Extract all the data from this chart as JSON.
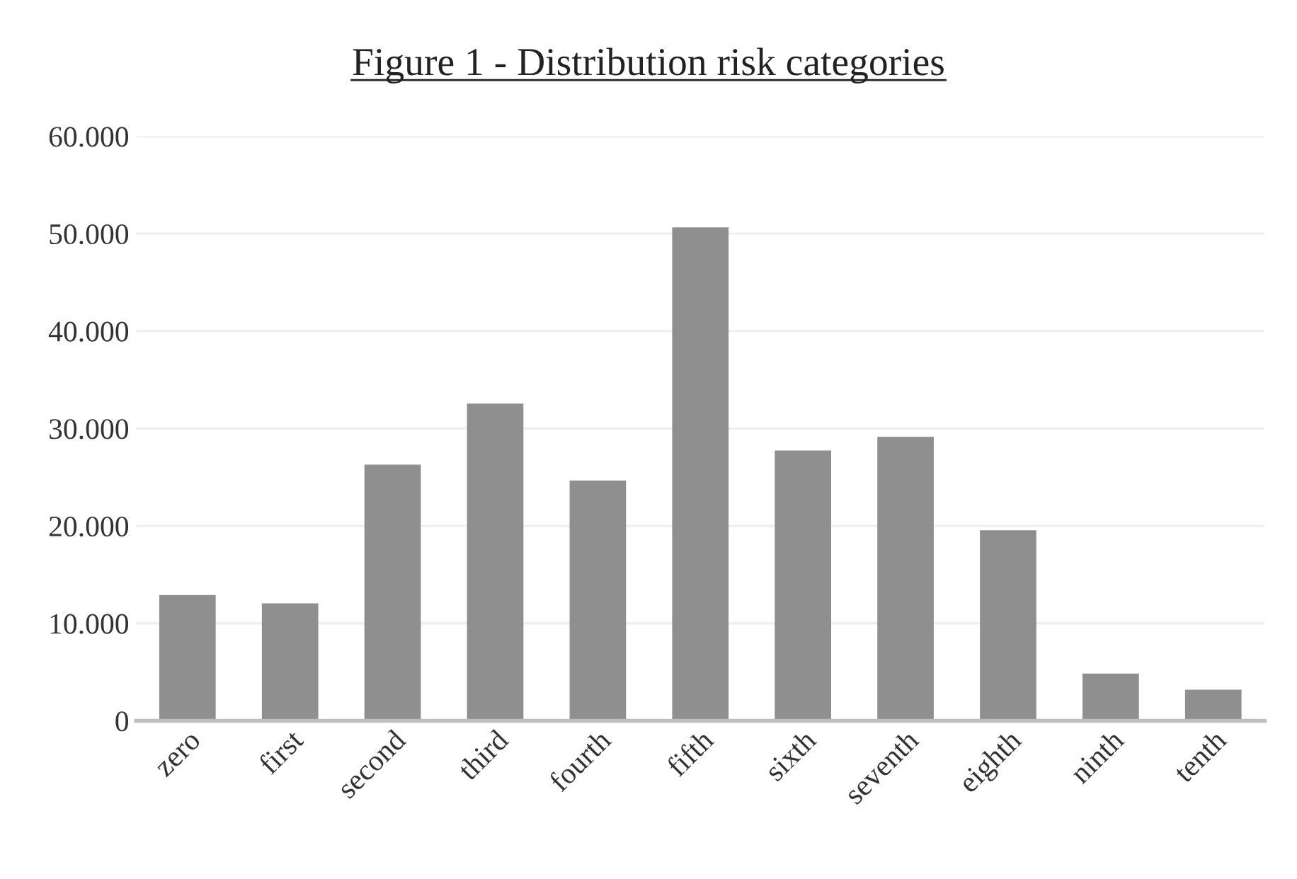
{
  "chart_data": {
    "type": "bar",
    "title": "Figure 1 - Distribution risk categories",
    "categories": [
      "zero",
      "first",
      "second",
      "third",
      "fourth",
      "fifth",
      "sixth",
      "seventh",
      "eighth",
      "ninth",
      "tenth"
    ],
    "values": [
      12900,
      12050,
      26300,
      32550,
      24650,
      50650,
      27750,
      29150,
      19550,
      4850,
      3200
    ],
    "color": "#8f8f8f",
    "ylim": [
      0,
      60000
    ],
    "yticks": [
      0,
      {
        "value": 10000,
        "label": "10.000"
      },
      {
        "value": 20000,
        "label": "20.000"
      },
      {
        "value": 30000,
        "label": "30.000"
      },
      {
        "value": 40000,
        "label": "40.000"
      },
      {
        "value": 50000,
        "label": "50.000"
      },
      {
        "value": 60000,
        "label": "60.000"
      }
    ],
    "grid": "y"
  }
}
